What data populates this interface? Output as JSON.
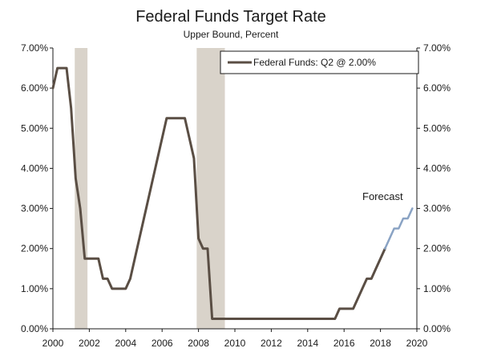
{
  "chart_data": {
    "type": "line",
    "title": "Federal Funds Target Rate",
    "subtitle": "Upper Bound, Percent",
    "xlabel": "",
    "ylabel": "",
    "xlim": [
      2000,
      2020
    ],
    "ylim": [
      0,
      7
    ],
    "x_ticks": [
      "2000",
      "2002",
      "2004",
      "2006",
      "2008",
      "2010",
      "2012",
      "2014",
      "2016",
      "2018",
      "2020"
    ],
    "y_ticks_left": [
      "0.00%",
      "1.00%",
      "2.00%",
      "3.00%",
      "4.00%",
      "5.00%",
      "6.00%",
      "7.00%"
    ],
    "y_ticks_right": [
      "0.00%",
      "1.00%",
      "2.00%",
      "3.00%",
      "4.00%",
      "5.00%",
      "6.00%",
      "7.00%"
    ],
    "grid": false,
    "legend_position": "top-right",
    "recession_bands": [
      {
        "start": 2001.2,
        "end": 2001.9
      },
      {
        "start": 2007.9,
        "end": 2009.45
      }
    ],
    "series": [
      {
        "name": "Federal Funds: Q2 @ 2.00%",
        "color": "#5a4e44",
        "x": [
          2000.0,
          2000.25,
          2000.5,
          2000.75,
          2001.0,
          2001.25,
          2001.5,
          2001.75,
          2002.0,
          2002.25,
          2002.5,
          2002.75,
          2003.0,
          2003.25,
          2003.5,
          2003.75,
          2004.0,
          2004.25,
          2004.5,
          2004.75,
          2005.0,
          2005.25,
          2005.5,
          2005.75,
          2006.0,
          2006.25,
          2006.5,
          2006.75,
          2007.0,
          2007.25,
          2007.5,
          2007.75,
          2008.0,
          2008.25,
          2008.5,
          2008.75,
          2009.0,
          2009.5,
          2010.0,
          2011.0,
          2012.0,
          2013.0,
          2014.0,
          2015.0,
          2015.5,
          2015.75,
          2016.0,
          2016.5,
          2016.75,
          2017.0,
          2017.25,
          2017.5,
          2017.75,
          2018.0,
          2018.25
        ],
        "y": [
          6.0,
          6.5,
          6.5,
          6.5,
          5.5,
          3.75,
          3.0,
          1.75,
          1.75,
          1.75,
          1.75,
          1.25,
          1.25,
          1.0,
          1.0,
          1.0,
          1.0,
          1.25,
          1.75,
          2.25,
          2.75,
          3.25,
          3.75,
          4.25,
          4.75,
          5.25,
          5.25,
          5.25,
          5.25,
          5.25,
          4.75,
          4.25,
          2.25,
          2.0,
          2.0,
          0.25,
          0.25,
          0.25,
          0.25,
          0.25,
          0.25,
          0.25,
          0.25,
          0.25,
          0.25,
          0.5,
          0.5,
          0.5,
          0.75,
          1.0,
          1.25,
          1.25,
          1.5,
          1.75,
          2.0
        ]
      },
      {
        "name": "Forecast",
        "color": "#8aa3c4",
        "x": [
          2018.25,
          2018.5,
          2018.75,
          2019.0,
          2019.25,
          2019.5,
          2019.75
        ],
        "y": [
          2.0,
          2.25,
          2.5,
          2.5,
          2.75,
          2.75,
          3.0
        ]
      }
    ],
    "annotations": [
      {
        "text": "Forecast",
        "x": 2017.6,
        "y": 3.15
      }
    ]
  }
}
